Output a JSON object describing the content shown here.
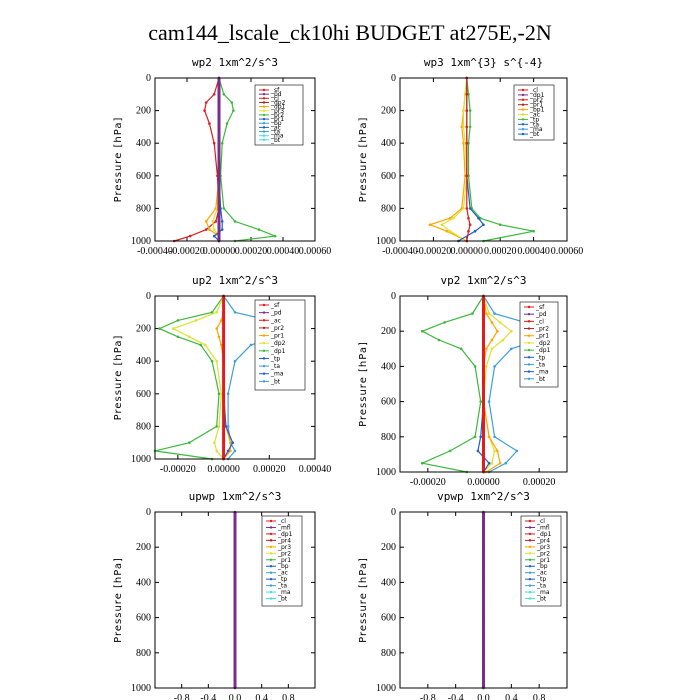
{
  "figure_title": "cam144_lscale_ck10hi  BUDGET at275E,-2N",
  "colors": {
    "frame": "#000000",
    "red": "#e41a1c",
    "purple": "#7b2d8b",
    "orange": "#ffa500",
    "yellow": "#e0e030",
    "green": "#3cb93c",
    "blue": "#1f5fc8",
    "lightblue": "#3ca0d8",
    "cyan": "#40e0e0",
    "darkred": "#b22222",
    "magenta": "#c020c0"
  },
  "chart_data": [
    {
      "type": "line",
      "title": "wp2  1xm^2/s^3",
      "ylabel": "Pressure [hPa]",
      "yticks": [
        "0",
        "200",
        "400",
        "600",
        "800",
        "1000"
      ],
      "xticks": [
        "-0.00040",
        "-0.00020",
        "0.00000",
        "0.00020",
        "0.00040",
        "0.00060"
      ],
      "xlim": [
        -0.0004,
        0.0006
      ],
      "ylim": [
        1000,
        0
      ],
      "legend": [
        "_sf",
        "_pd",
        "_cl",
        "_dp2",
        "_dp1",
        "_pr3",
        "_pr2",
        "_pr1",
        "_bp",
        "_ac",
        "_ta",
        "_ma",
        "_bt"
      ],
      "series": [
        {
          "name": "_dp2",
          "color": "red",
          "x": [
            0,
            -3e-05,
            -8e-05,
            -9e-05,
            -6e-05,
            -3e-05,
            -1e-05,
            0,
            -2e-05,
            -8e-05,
            -0.00018,
            -0.00028
          ],
          "y": [
            0,
            100,
            150,
            200,
            280,
            400,
            600,
            800,
            880,
            930,
            970,
            1000
          ]
        },
        {
          "name": "_pr1",
          "color": "green",
          "x": [
            0,
            3e-05,
            8e-05,
            9e-05,
            5e-05,
            2e-05,
            1e-05,
            3e-05,
            0.0001,
            0.00025,
            0.00035,
            0.0001
          ],
          "y": [
            0,
            100,
            150,
            200,
            280,
            400,
            600,
            800,
            880,
            930,
            970,
            1000
          ]
        },
        {
          "name": "_pr2",
          "color": "orange",
          "x": [
            0,
            0,
            0,
            0,
            0,
            0,
            0,
            -2e-05,
            -8e-05,
            -6e-05,
            0,
            0
          ],
          "y": [
            0,
            100,
            150,
            200,
            280,
            400,
            600,
            800,
            880,
            930,
            970,
            1000
          ]
        },
        {
          "name": "_pr3",
          "color": "yellow",
          "x": [
            0,
            0,
            0,
            0,
            0,
            0,
            0,
            -1e-05,
            -4e-05,
            -3e-05,
            0,
            0
          ],
          "y": [
            0,
            100,
            150,
            200,
            280,
            400,
            600,
            800,
            880,
            930,
            970,
            1000
          ]
        },
        {
          "name": "_bp",
          "color": "blue",
          "x": [
            0,
            0,
            0,
            0,
            0,
            0,
            0,
            1e-05,
            2e-05,
            2e-05,
            -3e-05,
            0
          ],
          "y": [
            0,
            100,
            150,
            200,
            280,
            400,
            600,
            800,
            880,
            930,
            970,
            1000
          ]
        },
        {
          "name": "_sf",
          "color": "purple",
          "x": [
            0,
            0,
            0,
            0,
            0,
            0,
            0,
            0,
            0,
            0,
            0,
            0
          ],
          "y": [
            0,
            100,
            150,
            200,
            280,
            400,
            600,
            800,
            880,
            930,
            970,
            1000
          ]
        }
      ]
    },
    {
      "type": "line",
      "title": "wp3  1xm^{3} s^{-4}",
      "ylabel": "Pressure [hPa]",
      "yticks": [
        "0",
        "200",
        "400",
        "600",
        "800",
        "1000"
      ],
      "xticks": [
        "-0.00040",
        "-0.00020",
        "0.00000",
        "0.00020",
        "0.00040",
        "0.00060"
      ],
      "xlim": [
        -0.0004,
        0.0006
      ],
      "ylim": [
        1000,
        0
      ],
      "legend": [
        "_cl",
        "_dp1",
        "_pr2",
        "_pr1",
        "_bp1",
        "_ac",
        "_tp",
        "_ta",
        "_ma",
        "_bt"
      ],
      "series": [
        {
          "name": "_ac",
          "color": "green",
          "x": [
            0,
            1e-05,
            2e-05,
            2e-05,
            1e-05,
            1e-05,
            3e-05,
            8e-05,
            0.0002,
            0.0004,
            0.0001
          ],
          "y": [
            0,
            100,
            200,
            300,
            400,
            600,
            800,
            860,
            900,
            940,
            1000
          ]
        },
        {
          "name": "_pr2",
          "color": "orange",
          "x": [
            0,
            -1e-05,
            -2e-05,
            -3e-05,
            -2e-05,
            -1e-05,
            -3e-05,
            -0.0001,
            -0.00022,
            -0.00012,
            0
          ],
          "y": [
            0,
            100,
            200,
            300,
            400,
            600,
            800,
            860,
            900,
            940,
            1000
          ]
        },
        {
          "name": "_pr1",
          "color": "yellow",
          "x": [
            0,
            -1e-05,
            -2e-05,
            -2e-05,
            -1e-05,
            0,
            -2e-05,
            -8e-05,
            -0.00015,
            -0.0001,
            0
          ],
          "y": [
            0,
            100,
            200,
            300,
            400,
            600,
            800,
            860,
            900,
            940,
            1000
          ]
        },
        {
          "name": "_tp",
          "color": "blue",
          "x": [
            0,
            0,
            0,
            0,
            0,
            0,
            2e-05,
            7e-05,
            0.0001,
            5e-05,
            -5e-05
          ],
          "y": [
            0,
            100,
            200,
            300,
            400,
            600,
            800,
            860,
            900,
            940,
            1000
          ]
        },
        {
          "name": "_dp1",
          "color": "red",
          "x": [
            0,
            0,
            0,
            0,
            0,
            0,
            0,
            1e-05,
            2e-05,
            1e-05,
            0
          ],
          "y": [
            0,
            100,
            200,
            300,
            400,
            600,
            800,
            860,
            900,
            940,
            1000
          ]
        }
      ]
    },
    {
      "type": "line",
      "title": "up2  1xm^2/s^3",
      "ylabel": "Pressure [hPa]",
      "yticks": [
        "0",
        "200",
        "400",
        "600",
        "800",
        "1000"
      ],
      "xticks": [
        "-0.00020",
        "0.00000",
        "0.00020",
        "0.00040"
      ],
      "xlim": [
        -0.0003,
        0.0004
      ],
      "ylim": [
        1000,
        0
      ],
      "legend": [
        "_sf",
        "_pd",
        "_ac",
        "_pr2",
        "_pr1",
        "_dp2",
        "_dp1",
        "_tp",
        "_ta",
        "_ma",
        "_bt"
      ],
      "series": [
        {
          "name": "_tp",
          "color": "lightblue",
          "x": [
            0,
            5e-05,
            0.0002,
            0.00035,
            0.00025,
            0.00012,
            5e-05,
            2e-05,
            2e-05,
            3e-05,
            5e-05,
            2e-05
          ],
          "y": [
            0,
            100,
            150,
            200,
            250,
            300,
            400,
            600,
            800,
            900,
            950,
            1000
          ]
        },
        {
          "name": "_pr1",
          "color": "green",
          "x": [
            0,
            -5e-05,
            -0.0002,
            -0.00028,
            -0.0002,
            -0.0001,
            -5e-05,
            -2e-05,
            -3e-05,
            -0.00015,
            -0.0003,
            -5e-05
          ],
          "y": [
            0,
            100,
            150,
            200,
            250,
            300,
            400,
            600,
            800,
            900,
            950,
            1000
          ]
        },
        {
          "name": "_pr2",
          "color": "yellow",
          "x": [
            0,
            -3e-05,
            -0.00012,
            -0.00022,
            -0.00015,
            -8e-05,
            -3e-05,
            -1e-05,
            -2e-05,
            -4e-05,
            -3e-05,
            0
          ],
          "y": [
            0,
            100,
            150,
            200,
            250,
            300,
            400,
            600,
            800,
            900,
            950,
            1000
          ]
        },
        {
          "name": "_ac",
          "color": "orange",
          "x": [
            0,
            0,
            -1e-05,
            -3e-05,
            -2e-05,
            -1e-05,
            0,
            0,
            1e-05,
            3e-05,
            3e-05,
            0
          ],
          "y": [
            0,
            100,
            150,
            200,
            250,
            300,
            400,
            600,
            800,
            900,
            950,
            1000
          ]
        },
        {
          "name": "_dp1",
          "color": "blue",
          "x": [
            0,
            0,
            0,
            0,
            0,
            0,
            0,
            0,
            1e-05,
            4e-05,
            2e-05,
            0
          ],
          "y": [
            0,
            100,
            150,
            200,
            250,
            300,
            400,
            600,
            800,
            900,
            950,
            1000
          ]
        },
        {
          "name": "_sf",
          "color": "red",
          "x": [
            0,
            0,
            0,
            0,
            0,
            0,
            0,
            0,
            0,
            0,
            0,
            0
          ],
          "y": [
            0,
            100,
            150,
            200,
            250,
            300,
            400,
            600,
            800,
            900,
            950,
            1000
          ]
        }
      ]
    },
    {
      "type": "line",
      "title": "vp2  1xm^2/s^3",
      "ylabel": "Pressure [hPa]",
      "yticks": [
        "0",
        "200",
        "400",
        "600",
        "800",
        "1000"
      ],
      "xticks": [
        "-0.00020",
        "0.00000",
        "0.00020"
      ],
      "xlim": [
        -0.0003,
        0.0003
      ],
      "ylim": [
        1000,
        0
      ],
      "legend": [
        "_sf",
        "_pd",
        "_cl",
        "_pr2",
        "_pr1",
        "_dp2",
        "_dp1",
        "_tp",
        "_ta",
        "_ma",
        "_bt"
      ],
      "series": [
        {
          "name": "_tp",
          "color": "lightblue",
          "x": [
            0,
            4e-05,
            0.00015,
            0.00026,
            0.0002,
            0.0001,
            4e-05,
            2e-05,
            4e-05,
            0.00012,
            8e-05,
            2e-05
          ],
          "y": [
            0,
            100,
            150,
            200,
            250,
            300,
            400,
            600,
            800,
            880,
            950,
            1000
          ]
        },
        {
          "name": "_pr1",
          "color": "green",
          "x": [
            0,
            -4e-05,
            -0.00014,
            -0.00022,
            -0.00016,
            -8e-05,
            -3e-05,
            -1e-05,
            -3e-05,
            -0.00012,
            -0.00022,
            -6e-05
          ],
          "y": [
            0,
            100,
            150,
            200,
            250,
            300,
            400,
            600,
            800,
            880,
            950,
            1000
          ]
        },
        {
          "name": "_pr2",
          "color": "yellow",
          "x": [
            0,
            2e-05,
            6e-05,
            0.0001,
            7e-05,
            3e-05,
            1e-05,
            0,
            2e-05,
            4e-05,
            3e-05,
            0
          ],
          "y": [
            0,
            100,
            150,
            200,
            250,
            300,
            400,
            600,
            800,
            880,
            950,
            1000
          ]
        },
        {
          "name": "_ac",
          "color": "orange",
          "x": [
            0,
            1e-05,
            3e-05,
            5e-05,
            3e-05,
            1e-05,
            0,
            0,
            2e-05,
            5e-05,
            6e-05,
            1e-05
          ],
          "y": [
            0,
            100,
            150,
            200,
            250,
            300,
            400,
            600,
            800,
            880,
            950,
            1000
          ]
        },
        {
          "name": "_dp1",
          "color": "blue",
          "x": [
            0,
            0,
            0,
            0,
            0,
            0,
            0,
            0,
            -1e-05,
            -2e-05,
            2e-05,
            0
          ],
          "y": [
            0,
            100,
            150,
            200,
            250,
            300,
            400,
            600,
            800,
            880,
            950,
            1000
          ]
        },
        {
          "name": "_sf",
          "color": "red",
          "x": [
            0,
            0,
            0,
            0,
            0,
            0,
            0,
            0,
            0,
            0,
            0,
            0
          ],
          "y": [
            0,
            100,
            150,
            200,
            250,
            300,
            400,
            600,
            800,
            880,
            950,
            1000
          ]
        }
      ]
    },
    {
      "type": "line",
      "title": "upwp  1xm^2/s^3",
      "ylabel": "Pressure [hPa]",
      "yticks": [
        "0",
        "200",
        "400",
        "600",
        "800",
        "1000"
      ],
      "xticks": [
        "-0.8",
        "-0.4",
        "0.0",
        "0.4",
        "0.8"
      ],
      "xlim": [
        -1.2,
        1.2
      ],
      "ylim": [
        1000,
        0
      ],
      "legend": [
        "_cl",
        "_mfl",
        "_dp1",
        "_pr4",
        "_pr3",
        "_pr2",
        "_pr1",
        "_bp",
        "_ac",
        "_tp",
        "_ta",
        "_ma",
        "_bt"
      ],
      "series": [
        {
          "name": "_cl",
          "color": "purple",
          "x": [
            0,
            0,
            0,
            0,
            0,
            0,
            0,
            0,
            0,
            0,
            0
          ],
          "y": [
            0,
            100,
            200,
            300,
            400,
            500,
            600,
            700,
            800,
            900,
            1000
          ]
        }
      ]
    },
    {
      "type": "line",
      "title": "vpwp  1xm^2/s^3",
      "ylabel": "Pressure [hPa]",
      "yticks": [
        "0",
        "200",
        "400",
        "600",
        "800",
        "1000"
      ],
      "xticks": [
        "-0.8",
        "-0.4",
        "0.0",
        "0.4",
        "0.8"
      ],
      "xlim": [
        -1.2,
        1.2
      ],
      "ylim": [
        1000,
        0
      ],
      "legend": [
        "_cl",
        "_mfl",
        "_dp1",
        "_pr4",
        "_pr3",
        "_pr2",
        "_pr1",
        "_bp",
        "_ac",
        "_tp",
        "_ta",
        "_ma",
        "_bt"
      ],
      "series": [
        {
          "name": "_cl",
          "color": "purple",
          "x": [
            0,
            0,
            0,
            0,
            0,
            0,
            0,
            0,
            0,
            0,
            0
          ],
          "y": [
            0,
            100,
            200,
            300,
            400,
            500,
            600,
            700,
            800,
            900,
            1000
          ]
        }
      ]
    }
  ]
}
